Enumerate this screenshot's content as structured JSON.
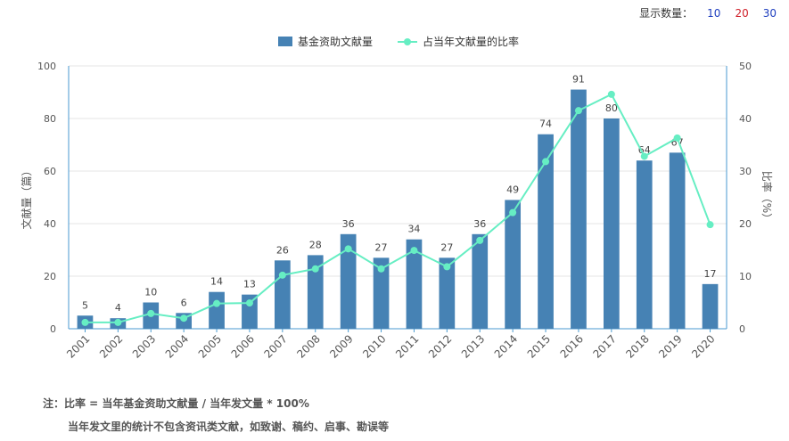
{
  "count_selector": {
    "label": "显示数量：",
    "options": [
      {
        "label": "10",
        "color": "#1f3fbf"
      },
      {
        "label": "20",
        "color": "#d0202a"
      },
      {
        "label": "30",
        "color": "#1f3fbf"
      }
    ]
  },
  "notes": {
    "line1": "注：比率 = 当年基金资助文献量 / 当年发文量 * 100%",
    "line2": "当年发文里的统计不包含资讯类文献，如致谢、稿约、启事、勘误等"
  },
  "chart_data": {
    "type": "bar",
    "categories": [
      "2001",
      "2002",
      "2003",
      "2004",
      "2005",
      "2006",
      "2007",
      "2008",
      "2009",
      "2010",
      "2011",
      "2012",
      "2013",
      "2014",
      "2015",
      "2016",
      "2017",
      "2018",
      "2019",
      "2020"
    ],
    "series": [
      {
        "name": "基金资助文献量",
        "type": "bar",
        "axis": "left",
        "color": "#4682b4",
        "values": [
          5,
          4,
          10,
          6,
          14,
          13,
          26,
          28,
          36,
          27,
          34,
          27,
          36,
          49,
          74,
          91,
          80,
          64,
          67,
          17
        ]
      },
      {
        "name": "占当年文献量的比率",
        "type": "line",
        "axis": "right",
        "color": "#66eec3",
        "values": [
          1.2,
          1.2,
          2.9,
          2.0,
          4.8,
          4.9,
          10.2,
          11.4,
          15.2,
          11.4,
          14.9,
          11.8,
          16.8,
          22.1,
          31.8,
          41.5,
          44.6,
          32.8,
          36.3,
          19.8
        ]
      }
    ],
    "ylabel": "文献量（篇）",
    "y2label": "比率（%）",
    "ylim": [
      0,
      100
    ],
    "y2lim": [
      0,
      50
    ],
    "yticks": [
      "0",
      "20",
      "40",
      "60",
      "80",
      "100"
    ],
    "y2ticks": [
      "0",
      "10",
      "20",
      "30",
      "40",
      "50"
    ],
    "grid": true,
    "legend_position": "top-center"
  }
}
